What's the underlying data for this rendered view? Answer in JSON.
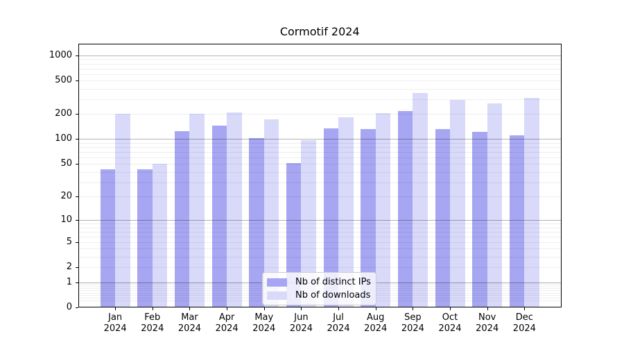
{
  "chart_data": {
    "type": "bar",
    "title": "Cormotif 2024",
    "categories": [
      "Jan 2024",
      "Feb 2024",
      "Mar 2024",
      "Apr 2024",
      "May 2024",
      "Jun 2024",
      "Jul 2024",
      "Aug 2024",
      "Sep 2024",
      "Oct 2024",
      "Nov 2024",
      "Dec 2024"
    ],
    "series": [
      {
        "name": "Nb of distinct IPs",
        "color": "#a6a6f2",
        "values": [
          43,
          43,
          124,
          146,
          103,
          51,
          134,
          132,
          218,
          132,
          122,
          111
        ]
      },
      {
        "name": "Nb of downloads",
        "color": "#d9d9fa",
        "values": [
          201,
          50,
          201,
          210,
          172,
          97,
          183,
          206,
          356,
          292,
          268,
          312
        ]
      }
    ],
    "xlabel": "",
    "ylabel": "",
    "yscale": "log1p",
    "ylim": [
      0,
      1380
    ],
    "yticks": [
      0,
      1,
      2,
      5,
      10,
      20,
      50,
      100,
      200,
      500,
      1000
    ],
    "major_grid_values": [
      1,
      10,
      100,
      1000
    ],
    "minor_grid_values": [
      0.2,
      0.3,
      0.4,
      0.5,
      0.6,
      0.7,
      0.8,
      0.9,
      2,
      3,
      4,
      5,
      6,
      7,
      8,
      9,
      20,
      30,
      40,
      50,
      60,
      70,
      80,
      90,
      200,
      300,
      400,
      500,
      600,
      700,
      800,
      900
    ],
    "grid": true,
    "legend_position": "lower center"
  }
}
